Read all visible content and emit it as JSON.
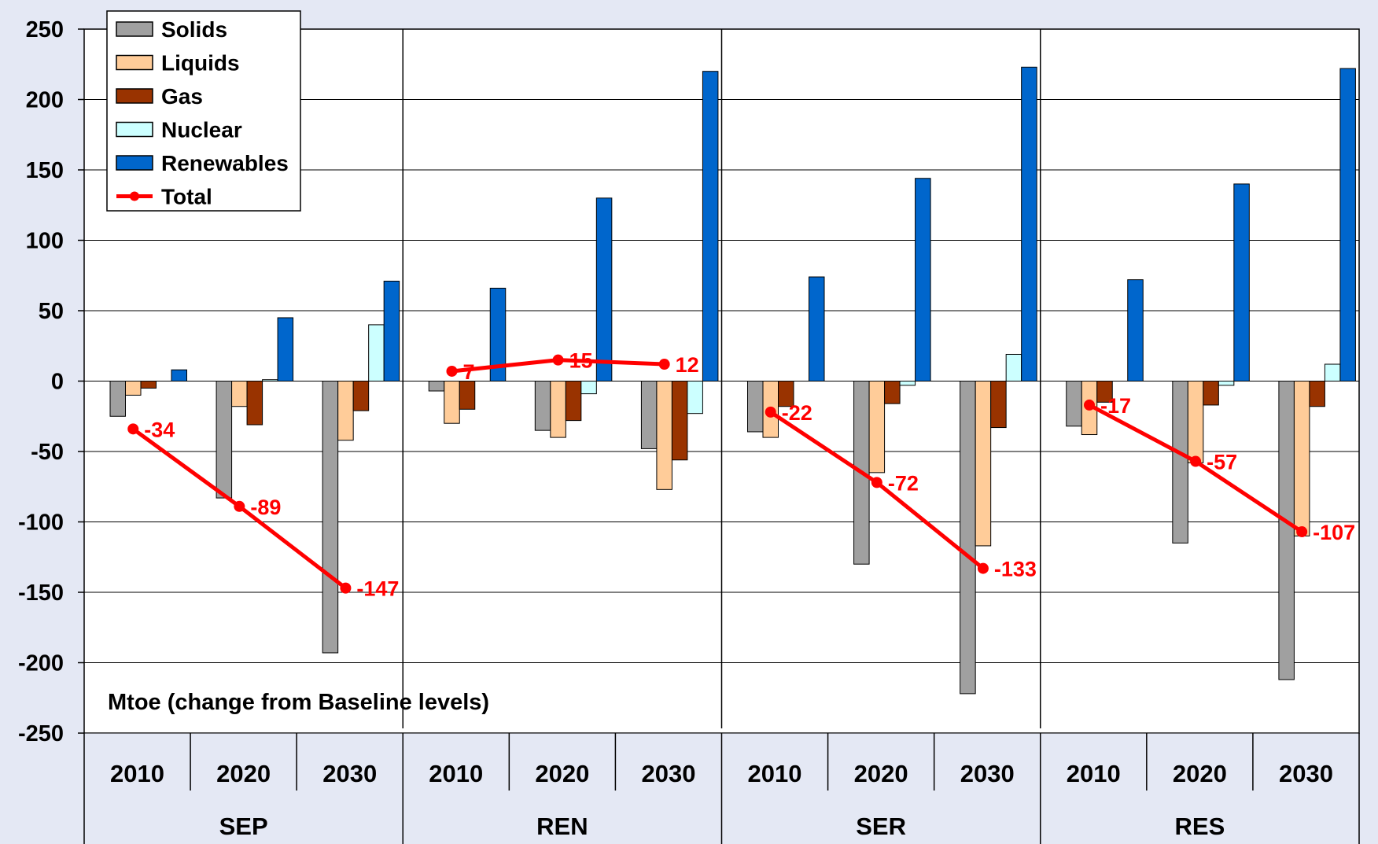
{
  "chart_data": {
    "type": "bar",
    "title": "",
    "annotation": "Mtoe (change from Baseline levels)",
    "xlabel": "",
    "ylabel": "",
    "ylim": [
      -250,
      250
    ],
    "yticks": [
      250,
      200,
      150,
      100,
      50,
      0,
      -50,
      -100,
      -150,
      -200,
      -250
    ],
    "grid": true,
    "legend_position": "top-left",
    "groups": [
      "SEP",
      "REN",
      "SER",
      "RES"
    ],
    "categories": [
      "2010",
      "2020",
      "2030",
      "2010",
      "2020",
      "2030",
      "2010",
      "2020",
      "2030",
      "2010",
      "2020",
      "2030"
    ],
    "series": [
      {
        "name": "Solids",
        "color": "#a0a0a0",
        "values": [
          -25,
          -83,
          -193,
          -7,
          -35,
          -48,
          -36,
          -130,
          -222,
          -32,
          -115,
          -212
        ]
      },
      {
        "name": "Liquids",
        "color": "#ffcc99",
        "values": [
          -10,
          -18,
          -42,
          -30,
          -40,
          -77,
          -40,
          -65,
          -117,
          -38,
          -58,
          -110
        ]
      },
      {
        "name": "Gas",
        "color": "#993300",
        "values": [
          -5,
          -31,
          -21,
          -20,
          -28,
          -56,
          -18,
          -16,
          -33,
          -15,
          -17,
          -18
        ]
      },
      {
        "name": "Nuclear",
        "color": "#ccffff",
        "values": [
          0,
          1,
          40,
          0,
          -9,
          -23,
          0,
          -3,
          19,
          0,
          -3,
          12
        ]
      },
      {
        "name": "Renewables",
        "color": "#0066cc",
        "values": [
          8,
          45,
          71,
          66,
          130,
          220,
          74,
          144,
          223,
          72,
          140,
          222
        ]
      }
    ],
    "line": {
      "name": "Total",
      "color": "#ff0000",
      "values": [
        -34,
        -89,
        -147,
        7,
        15,
        12,
        -22,
        -72,
        -133,
        -17,
        -57,
        -107
      ],
      "labels": [
        "-34",
        "-89",
        "-147",
        "7",
        "15",
        "12",
        "-22",
        "-72",
        "-133",
        "-17",
        "-57",
        "-107"
      ]
    }
  }
}
